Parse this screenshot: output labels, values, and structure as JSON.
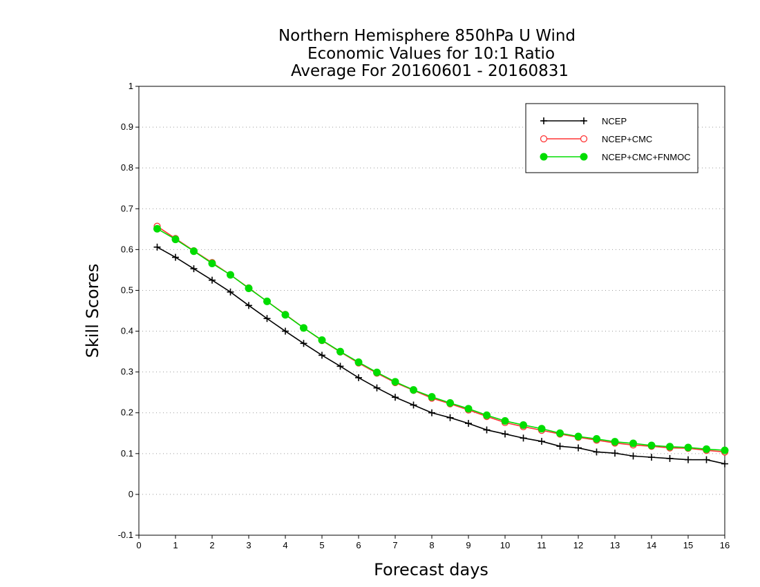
{
  "chart_data": {
    "type": "line",
    "title": [
      "Northern Hemisphere 850hPa U Wind",
      "Economic Values for 10:1 Ratio",
      "Average For 20160601 - 20160831"
    ],
    "xlabel": "Forecast days",
    "ylabel": "Skill Scores",
    "xlim": [
      0,
      16
    ],
    "ylim": [
      -0.1,
      1
    ],
    "xticks": [
      "0",
      "1",
      "2",
      "3",
      "4",
      "5",
      "6",
      "7",
      "8",
      "9",
      "10",
      "11",
      "12",
      "13",
      "14",
      "15",
      "16"
    ],
    "yticks": [
      "-0.1",
      "0",
      "0.1",
      "0.2",
      "0.3",
      "0.4",
      "0.5",
      "0.6",
      "0.7",
      "0.8",
      "0.9",
      "1"
    ],
    "grid": true,
    "legend_position": "top-right",
    "x": [
      0.5,
      1,
      1.5,
      2,
      2.5,
      3,
      3.5,
      4,
      4.5,
      5,
      5.5,
      6,
      6.5,
      7,
      7.5,
      8,
      8.5,
      9,
      9.5,
      10,
      10.5,
      11,
      11.5,
      12,
      12.5,
      13,
      13.5,
      14,
      14.5,
      15,
      15.5,
      16
    ],
    "series": [
      {
        "name": "NCEP",
        "color": "#000000",
        "marker": "plus",
        "values": [
          0.606,
          0.581,
          0.553,
          0.525,
          0.496,
          0.463,
          0.431,
          0.4,
          0.37,
          0.341,
          0.314,
          0.286,
          0.261,
          0.238,
          0.219,
          0.2,
          0.188,
          0.174,
          0.158,
          0.148,
          0.138,
          0.13,
          0.118,
          0.114,
          0.104,
          0.101,
          0.094,
          0.091,
          0.088,
          0.085,
          0.085,
          0.075
        ]
      },
      {
        "name": "NCEP+CMC",
        "color": "#ff3333",
        "marker": "open-circle",
        "values": [
          0.657,
          0.627,
          0.597,
          0.568,
          0.538,
          0.506,
          0.473,
          0.441,
          0.408,
          0.377,
          0.349,
          0.322,
          0.297,
          0.274,
          0.255,
          0.236,
          0.222,
          0.207,
          0.191,
          0.176,
          0.166,
          0.157,
          0.148,
          0.14,
          0.133,
          0.126,
          0.121,
          0.118,
          0.114,
          0.113,
          0.108,
          0.104
        ]
      },
      {
        "name": "NCEP+CMC+FNMOC",
        "color": "#00dd00",
        "marker": "filled-circle",
        "values": [
          0.651,
          0.625,
          0.596,
          0.566,
          0.538,
          0.505,
          0.473,
          0.44,
          0.408,
          0.378,
          0.35,
          0.324,
          0.299,
          0.276,
          0.256,
          0.239,
          0.224,
          0.21,
          0.194,
          0.18,
          0.17,
          0.161,
          0.15,
          0.142,
          0.136,
          0.129,
          0.125,
          0.12,
          0.117,
          0.115,
          0.111,
          0.108
        ]
      }
    ]
  }
}
